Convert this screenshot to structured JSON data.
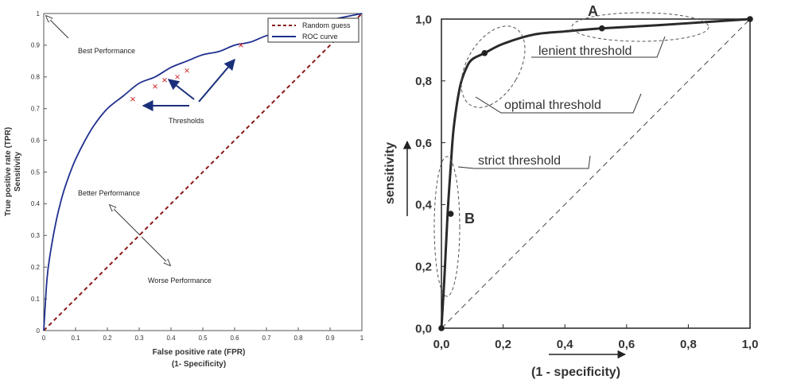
{
  "chart_data": [
    {
      "type": "line",
      "title": "",
      "xlabel": "False positive rate (FPR)",
      "xlabel2": "(1- Specificity)",
      "ylabel": "True positive rate (TPR)",
      "ylabel2": "Sensitivity",
      "xlim": [
        0,
        1
      ],
      "ylim": [
        0,
        1
      ],
      "x_ticks": [
        "0",
        "0.1",
        "0.2",
        "0.3",
        "0.4",
        "0.5",
        "0.6",
        "0.7",
        "0.8",
        "0.9",
        "1"
      ],
      "y_ticks": [
        "0",
        "0.1",
        "0.2",
        "0.3",
        "0.4",
        "0.5",
        "0.6",
        "0.7",
        "0.8",
        "0.9",
        "1"
      ],
      "legend_position": "top-right",
      "grid": false,
      "series": [
        {
          "name": "Random guess",
          "color": "#8b1a1a",
          "style": "dashed",
          "x": [
            0,
            1
          ],
          "y": [
            0,
            1
          ]
        },
        {
          "name": "ROC curve",
          "color": "#1f2f8f",
          "style": "solid",
          "x": [
            0,
            0.01,
            0.02,
            0.04,
            0.06,
            0.08,
            0.1,
            0.13,
            0.16,
            0.2,
            0.25,
            0.3,
            0.35,
            0.4,
            0.45,
            0.5,
            0.55,
            0.6,
            0.65,
            0.7,
            0.75,
            0.8,
            0.85,
            0.9,
            0.95,
            1
          ],
          "y": [
            0,
            0.16,
            0.24,
            0.35,
            0.43,
            0.49,
            0.54,
            0.6,
            0.65,
            0.7,
            0.74,
            0.78,
            0.8,
            0.83,
            0.85,
            0.87,
            0.88,
            0.9,
            0.91,
            0.93,
            0.94,
            0.95,
            0.97,
            0.98,
            0.99,
            1
          ]
        }
      ],
      "threshold_points": {
        "x": [
          0.28,
          0.35,
          0.38,
          0.42,
          0.45,
          0.62
        ],
        "y": [
          0.73,
          0.77,
          0.79,
          0.8,
          0.82,
          0.9
        ]
      },
      "annotations": {
        "best": "Best Performance",
        "thresholds": "Thresholds",
        "better": "Better Performance",
        "worse": "Worse Performance"
      }
    },
    {
      "type": "line",
      "title": "",
      "xlabel": "(1 - specificity)",
      "ylabel": "sensitivity",
      "xlim": [
        0,
        1
      ],
      "ylim": [
        0,
        1
      ],
      "x_ticks": [
        "0,0",
        "0,2",
        "0,4",
        "0,6",
        "0,8",
        "1,0"
      ],
      "y_ticks": [
        "0,0",
        "0,2",
        "0,4",
        "0,6",
        "0,8",
        "1,0"
      ],
      "grid": false,
      "series": [
        {
          "name": "",
          "style": "dashed",
          "color": "#444444",
          "x": [
            0,
            1
          ],
          "y": [
            0,
            1
          ]
        },
        {
          "name": "",
          "style": "solid",
          "color": "#2a2a2a",
          "x": [
            0,
            0.01,
            0.02,
            0.03,
            0.04,
            0.06,
            0.08,
            0.1,
            0.14,
            0.2,
            0.3,
            0.4,
            0.52,
            0.7,
            0.85,
            1
          ],
          "y": [
            0,
            0.17,
            0.37,
            0.52,
            0.65,
            0.78,
            0.84,
            0.87,
            0.89,
            0.92,
            0.95,
            0.96,
            0.97,
            0.98,
            0.99,
            1
          ]
        }
      ],
      "markers": {
        "x": [
          0,
          0.03,
          0.14,
          0.52,
          1
        ],
        "y": [
          0,
          0.37,
          0.89,
          0.97,
          1
        ]
      },
      "annotations": {
        "point_a": "A",
        "point_b": "B",
        "lenient": "lenient threshold",
        "optimal": "optimal threshold",
        "strict": "strict threshold"
      }
    }
  ]
}
